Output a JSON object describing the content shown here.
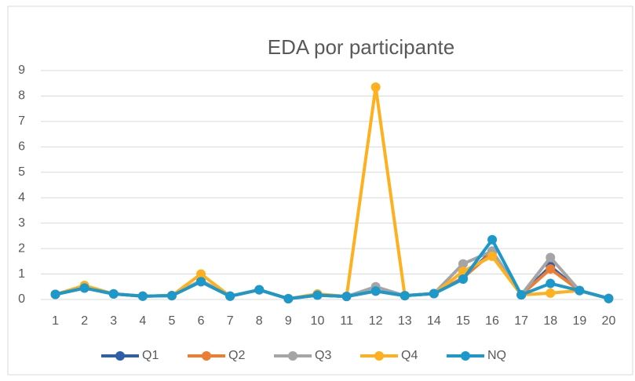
{
  "chart_data": {
    "type": "line",
    "title": "EDA por participante",
    "categories": [
      "1",
      "2",
      "3",
      "4",
      "5",
      "6",
      "7",
      "8",
      "9",
      "10",
      "11",
      "12",
      "13",
      "14",
      "15",
      "16",
      "17",
      "18",
      "19",
      "20"
    ],
    "series": [
      {
        "name": "Q1",
        "color": "#2f5fa8",
        "values": [
          0.2,
          0.45,
          0.22,
          0.13,
          0.15,
          0.7,
          0.13,
          0.38,
          0.03,
          0.17,
          0.12,
          0.33,
          0.15,
          0.23,
          0.85,
          1.9,
          0.18,
          1.3,
          0.35,
          0.04
        ]
      },
      {
        "name": "Q2",
        "color": "#ed7d31",
        "values": [
          0.2,
          0.45,
          0.22,
          0.13,
          0.15,
          0.7,
          0.13,
          0.38,
          0.03,
          0.17,
          0.12,
          0.33,
          0.15,
          0.23,
          0.85,
          1.85,
          0.18,
          1.2,
          0.35,
          0.04
        ]
      },
      {
        "name": "Q3",
        "color": "#a5a5a5",
        "values": [
          0.2,
          0.45,
          0.22,
          0.13,
          0.15,
          0.75,
          0.13,
          0.38,
          0.03,
          0.17,
          0.12,
          0.5,
          0.15,
          0.23,
          1.4,
          1.9,
          0.18,
          1.65,
          0.35,
          0.04
        ]
      },
      {
        "name": "Q4",
        "color": "#ffb01f",
        "values": [
          0.2,
          0.55,
          0.22,
          0.13,
          0.15,
          1.0,
          0.13,
          0.38,
          0.03,
          0.22,
          0.12,
          8.35,
          0.15,
          0.23,
          1.1,
          1.7,
          0.18,
          0.25,
          0.35,
          0.04
        ]
      },
      {
        "name": "NQ",
        "color": "#1b98cc",
        "values": [
          0.2,
          0.45,
          0.22,
          0.13,
          0.15,
          0.7,
          0.13,
          0.38,
          0.03,
          0.17,
          0.12,
          0.33,
          0.15,
          0.23,
          0.8,
          2.35,
          0.18,
          0.63,
          0.35,
          0.04
        ]
      }
    ],
    "ylim": [
      0,
      9
    ],
    "yticks": [
      0,
      1,
      2,
      3,
      4,
      5,
      6,
      7,
      8,
      9
    ],
    "grid": true,
    "legend": "bottom"
  }
}
